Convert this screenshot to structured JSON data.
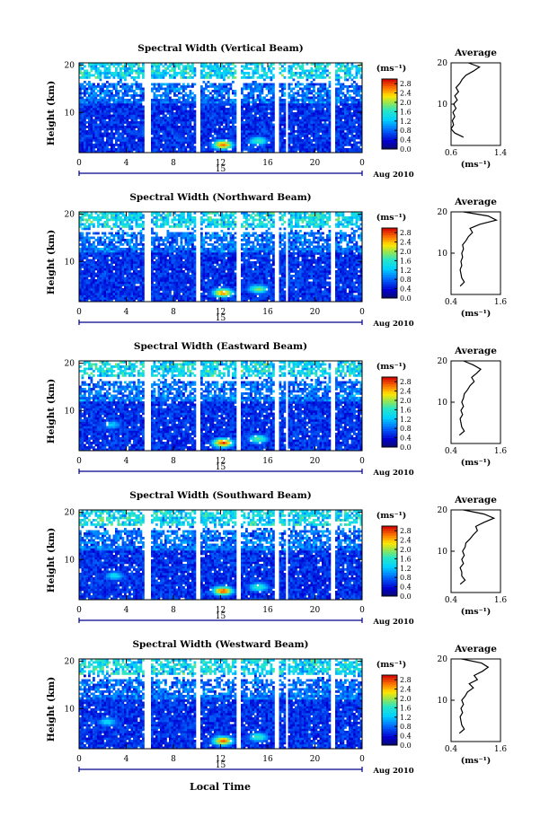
{
  "figure": {
    "time_axis_label": "Local Time",
    "date_label": "Aug 2010",
    "day_label": "15"
  },
  "chart_data": [
    {
      "type": "heatmap",
      "title": "Spectral Width (Vertical Beam)",
      "ylabel": "Height (km)",
      "xlabel": "Local Time",
      "x_ticks": [
        "0",
        "4",
        "8",
        "12",
        "16",
        "20",
        "0"
      ],
      "y_ticks": [
        "10",
        "20"
      ],
      "xlim": [
        0,
        24
      ],
      "ylim": [
        1.5,
        20.5
      ],
      "colorbar": {
        "unit": "(ms⁻¹)",
        "ticks": [
          "0.0",
          "0.4",
          "0.8",
          "1.2",
          "1.6",
          "2.0",
          "2.4",
          "2.8"
        ],
        "range": [
          0,
          3.0
        ]
      },
      "data_gaps_hours": [
        [
          5.6,
          6.0
        ],
        [
          10.0,
          10.3
        ],
        [
          13.4,
          13.8
        ],
        [
          16.5,
          16.9
        ],
        [
          17.5,
          17.8
        ],
        [
          21.4,
          21.8
        ]
      ],
      "features": [
        {
          "center": [
            12.2,
            3.2
          ],
          "value": 2.6
        },
        {
          "center": [
            15.2,
            4.0
          ],
          "value": 1.6
        }
      ],
      "average_profile": {
        "title": "Average",
        "xlabel": "(ms⁻¹)",
        "x_ticks": [
          "0.6",
          "1.4"
        ],
        "xlim": [
          0.6,
          1.4
        ],
        "y_ticks": [
          "10",
          "20"
        ],
        "height_km": [
          2,
          3,
          4,
          5,
          6,
          7,
          8,
          9,
          10,
          11,
          12,
          13,
          14,
          15,
          16,
          17,
          18,
          19,
          20
        ],
        "width_ms": [
          0.8,
          0.66,
          0.6,
          0.64,
          0.62,
          0.66,
          0.63,
          0.68,
          0.64,
          0.7,
          0.66,
          0.72,
          0.68,
          0.74,
          0.78,
          0.84,
          0.96,
          1.06,
          0.88
        ]
      }
    },
    {
      "type": "heatmap",
      "title": "Spectral Width (Northward Beam)",
      "ylabel": "Height (km)",
      "xlabel": "Local Time",
      "x_ticks": [
        "0",
        "4",
        "8",
        "12",
        "16",
        "20",
        "0"
      ],
      "y_ticks": [
        "10",
        "20"
      ],
      "xlim": [
        0,
        24
      ],
      "ylim": [
        1.5,
        20.5
      ],
      "colorbar": {
        "unit": "(ms⁻¹)",
        "ticks": [
          "0.0",
          "0.4",
          "0.8",
          "1.2",
          "1.6",
          "2.0",
          "2.4",
          "2.8"
        ],
        "range": [
          0,
          3.0
        ]
      },
      "data_gaps_hours": [
        [
          5.6,
          6.0
        ],
        [
          10.0,
          10.3
        ],
        [
          13.4,
          13.8
        ],
        [
          16.5,
          16.9
        ],
        [
          17.5,
          17.8
        ],
        [
          21.4,
          21.8
        ]
      ],
      "features": [
        {
          "center": [
            12.2,
            3.4
          ],
          "value": 2.5
        },
        {
          "center": [
            15.2,
            4.2
          ],
          "value": 1.8
        },
        {
          "center": [
            1.0,
            18.6
          ],
          "value": 1.9
        }
      ],
      "average_profile": {
        "title": "Average",
        "xlabel": "(ms⁻¹)",
        "x_ticks": [
          "0.4",
          "1.6"
        ],
        "xlim": [
          0.4,
          1.6
        ],
        "y_ticks": [
          "10",
          "20"
        ],
        "height_km": [
          2,
          3,
          4,
          5,
          6,
          7,
          8,
          9,
          10,
          11,
          12,
          13,
          14,
          15,
          16,
          17,
          18,
          19,
          20
        ],
        "width_ms": [
          0.62,
          0.72,
          0.66,
          0.64,
          0.62,
          0.66,
          0.64,
          0.68,
          0.66,
          0.7,
          0.68,
          0.76,
          0.82,
          0.92,
          0.86,
          1.1,
          1.5,
          1.3,
          0.7
        ]
      }
    },
    {
      "type": "heatmap",
      "title": "Spectral Width (Eastward Beam)",
      "ylabel": "Height (km)",
      "xlabel": "Local Time",
      "x_ticks": [
        "0",
        "4",
        "8",
        "12",
        "16",
        "20",
        "0"
      ],
      "y_ticks": [
        "10",
        "20"
      ],
      "xlim": [
        0,
        24
      ],
      "ylim": [
        1.5,
        20.5
      ],
      "colorbar": {
        "unit": "(ms⁻¹)",
        "ticks": [
          "0.0",
          "0.4",
          "0.8",
          "1.2",
          "1.6",
          "2.0",
          "2.4",
          "2.8"
        ],
        "range": [
          0,
          3.0
        ]
      },
      "data_gaps_hours": [
        [
          5.6,
          6.0
        ],
        [
          10.0,
          10.3
        ],
        [
          13.4,
          13.8
        ],
        [
          16.5,
          16.9
        ],
        [
          17.5,
          17.8
        ],
        [
          21.4,
          21.8
        ]
      ],
      "features": [
        {
          "center": [
            12.2,
            3.2
          ],
          "value": 2.7
        },
        {
          "center": [
            15.2,
            4.0
          ],
          "value": 1.7
        },
        {
          "center": [
            2.8,
            7.0
          ],
          "value": 1.2
        }
      ],
      "average_profile": {
        "title": "Average",
        "xlabel": "(ms⁻¹)",
        "x_ticks": [
          "0.4",
          "1.6"
        ],
        "xlim": [
          0.4,
          1.6
        ],
        "y_ticks": [
          "10",
          "20"
        ],
        "height_km": [
          2,
          3,
          4,
          5,
          6,
          7,
          8,
          9,
          10,
          11,
          12,
          13,
          14,
          15,
          16,
          17,
          18,
          19,
          20
        ],
        "width_ms": [
          0.6,
          0.72,
          0.66,
          0.64,
          0.62,
          0.68,
          0.64,
          0.7,
          0.66,
          0.7,
          0.72,
          0.8,
          0.86,
          0.96,
          0.9,
          1.02,
          1.12,
          0.94,
          0.7
        ]
      }
    },
    {
      "type": "heatmap",
      "title": "Spectral Width (Southward Beam)",
      "ylabel": "Height (km)",
      "xlabel": "Local Time",
      "x_ticks": [
        "0",
        "4",
        "8",
        "12",
        "16",
        "20",
        "0"
      ],
      "y_ticks": [
        "10",
        "20"
      ],
      "xlim": [
        0,
        24
      ],
      "ylim": [
        1.5,
        20.5
      ],
      "colorbar": {
        "unit": "(ms⁻¹)",
        "ticks": [
          "0.0",
          "0.4",
          "0.8",
          "1.2",
          "1.6",
          "2.0",
          "2.4",
          "2.8"
        ],
        "range": [
          0,
          3.0
        ]
      },
      "data_gaps_hours": [
        [
          5.6,
          6.0
        ],
        [
          10.0,
          10.3
        ],
        [
          13.4,
          13.8
        ],
        [
          16.5,
          16.9
        ],
        [
          17.5,
          17.8
        ],
        [
          21.4,
          21.8
        ]
      ],
      "features": [
        {
          "center": [
            12.2,
            3.4
          ],
          "value": 2.6
        },
        {
          "center": [
            15.2,
            4.2
          ],
          "value": 1.6
        },
        {
          "center": [
            3.0,
            6.6
          ],
          "value": 1.3
        },
        {
          "center": [
            2.0,
            18.5
          ],
          "value": 2.0
        }
      ],
      "average_profile": {
        "title": "Average",
        "xlabel": "(ms⁻¹)",
        "x_ticks": [
          "0.4",
          "1.6"
        ],
        "xlim": [
          0.4,
          1.6
        ],
        "y_ticks": [
          "10",
          "20"
        ],
        "height_km": [
          2,
          3,
          4,
          5,
          6,
          7,
          8,
          9,
          10,
          11,
          12,
          13,
          14,
          15,
          16,
          17,
          18,
          19,
          20
        ],
        "width_ms": [
          0.62,
          0.74,
          0.66,
          0.66,
          0.62,
          0.7,
          0.66,
          0.72,
          0.68,
          0.74,
          0.76,
          0.86,
          0.94,
          1.04,
          1.0,
          1.2,
          1.44,
          1.2,
          0.7
        ]
      }
    },
    {
      "type": "heatmap",
      "title": "Spectral Width (Westward Beam)",
      "ylabel": "Height (km)",
      "xlabel": "Local Time",
      "x_ticks": [
        "0",
        "4",
        "8",
        "12",
        "16",
        "20",
        "0"
      ],
      "y_ticks": [
        "10",
        "20"
      ],
      "xlim": [
        0,
        24
      ],
      "ylim": [
        1.5,
        20.5
      ],
      "colorbar": {
        "unit": "(ms⁻¹)",
        "ticks": [
          "0.0",
          "0.4",
          "0.8",
          "1.2",
          "1.6",
          "2.0",
          "2.4",
          "2.8"
        ],
        "range": [
          0,
          3.0
        ]
      },
      "data_gaps_hours": [
        [
          5.6,
          6.0
        ],
        [
          10.0,
          10.3
        ],
        [
          13.4,
          13.8
        ],
        [
          16.5,
          16.9
        ],
        [
          17.5,
          17.8
        ],
        [
          21.4,
          21.8
        ]
      ],
      "features": [
        {
          "center": [
            12.2,
            3.2
          ],
          "value": 2.6
        },
        {
          "center": [
            15.2,
            4.0
          ],
          "value": 1.6
        },
        {
          "center": [
            2.4,
            7.2
          ],
          "value": 1.3
        },
        {
          "center": [
            1.5,
            18.4
          ],
          "value": 1.8
        }
      ],
      "average_profile": {
        "title": "Average",
        "xlabel": "(ms⁻¹)",
        "x_ticks": [
          "0.4",
          "1.6"
        ],
        "xlim": [
          0.4,
          1.6
        ],
        "y_ticks": [
          "10",
          "20"
        ],
        "height_km": [
          2,
          3,
          4,
          5,
          6,
          7,
          8,
          9,
          10,
          11,
          12,
          13,
          14,
          15,
          16,
          17,
          18,
          19,
          20
        ],
        "width_ms": [
          0.6,
          0.72,
          0.66,
          0.64,
          0.62,
          0.68,
          0.64,
          0.7,
          0.66,
          0.74,
          0.8,
          0.94,
          0.84,
          1.04,
          0.96,
          1.16,
          1.3,
          1.14,
          0.66
        ]
      }
    }
  ]
}
